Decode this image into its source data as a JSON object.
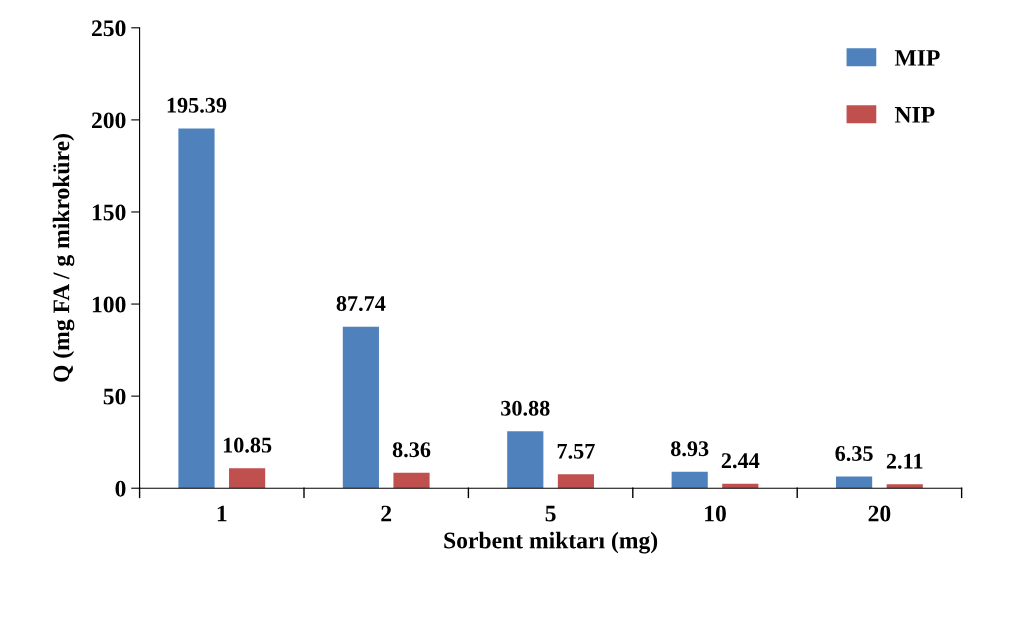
{
  "chart_data": {
    "type": "bar",
    "xlabel": "Sorbent miktarı (mg)",
    "ylabel": "Q (mg FA / g mikroküre)",
    "categories": [
      "1",
      "2",
      "5",
      "10",
      "20"
    ],
    "series": [
      {
        "name": "MIP",
        "color": "#4f81bd",
        "values": [
          195.39,
          87.74,
          30.88,
          8.93,
          6.35
        ]
      },
      {
        "name": "NIP",
        "color": "#c0504d",
        "values": [
          10.85,
          8.36,
          7.57,
          2.44,
          2.11
        ]
      }
    ],
    "ylim": [
      0,
      250
    ],
    "yticks": [
      0,
      50,
      100,
      150,
      200,
      250
    ],
    "grid": false,
    "legend": "top right",
    "data_labels": true
  }
}
